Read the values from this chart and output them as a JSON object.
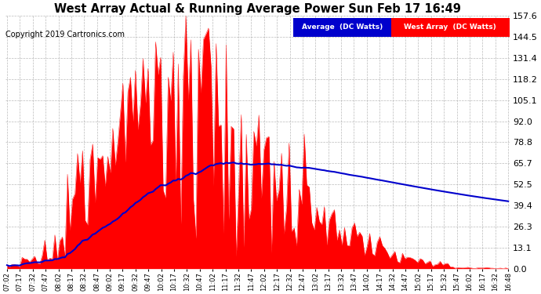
{
  "title": "West Array Actual & Running Average Power Sun Feb 17 16:49",
  "copyright": "Copyright 2019 Cartronics.com",
  "yticks": [
    0.0,
    13.1,
    26.3,
    39.4,
    52.5,
    65.7,
    78.8,
    92.0,
    105.1,
    118.2,
    131.4,
    144.5,
    157.6
  ],
  "ymax": 157.6,
  "ymin": 0.0,
  "bar_color": "#FF0000",
  "avg_color": "#0000CC",
  "background_color": "#FFFFFF",
  "plot_bg_color": "#FFFFFF",
  "grid_color": "#AAAAAA",
  "legend_avg_bg": "#0000CC",
  "legend_west_bg": "#FF0000",
  "legend_avg_text": "Average  (DC Watts)",
  "legend_west_text": "West Array  (DC Watts)",
  "xtick_labels": [
    "07:02",
    "07:17",
    "07:32",
    "07:47",
    "08:02",
    "08:17",
    "08:32",
    "08:47",
    "09:02",
    "09:17",
    "09:32",
    "09:47",
    "10:02",
    "10:17",
    "10:32",
    "10:47",
    "11:02",
    "11:17",
    "11:32",
    "11:47",
    "12:02",
    "12:17",
    "12:32",
    "12:47",
    "13:02",
    "13:17",
    "13:32",
    "13:47",
    "14:02",
    "14:17",
    "14:32",
    "14:47",
    "15:02",
    "15:17",
    "15:32",
    "15:47",
    "16:02",
    "16:17",
    "16:32",
    "16:48"
  ],
  "n_points": 200,
  "title_fontsize": 10.5,
  "copyright_fontsize": 7,
  "ytick_fontsize": 8,
  "xtick_fontsize": 6
}
